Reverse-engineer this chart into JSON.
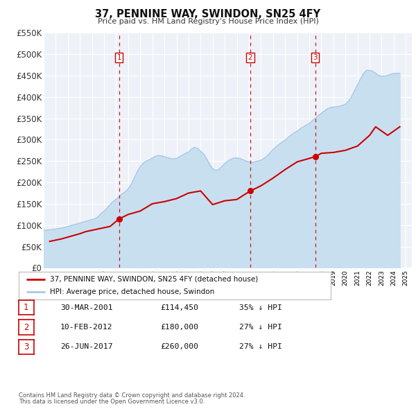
{
  "title": "37, PENNINE WAY, SWINDON, SN25 4FY",
  "subtitle": "Price paid vs. HM Land Registry's House Price Index (HPI)",
  "ylim": [
    0,
    550000
  ],
  "yticks": [
    0,
    50000,
    100000,
    150000,
    200000,
    250000,
    300000,
    350000,
    400000,
    450000,
    500000,
    550000
  ],
  "ytick_labels": [
    "£0",
    "£50K",
    "£100K",
    "£150K",
    "£200K",
    "£250K",
    "£300K",
    "£350K",
    "£400K",
    "£450K",
    "£500K",
    "£550K"
  ],
  "hpi_color": "#a8c8e8",
  "hpi_fill_color": "#c8dff0",
  "price_color": "#cc0000",
  "vline_color": "#cc0000",
  "bg_chart": "#eef2f8",
  "sale_points": [
    {
      "year": 2001.24,
      "price": 114450,
      "label": "1"
    },
    {
      "year": 2012.12,
      "price": 180000,
      "label": "2"
    },
    {
      "year": 2017.49,
      "price": 260000,
      "label": "3"
    }
  ],
  "legend_entries": [
    "37, PENNINE WAY, SWINDON, SN25 4FY (detached house)",
    "HPI: Average price, detached house, Swindon"
  ],
  "table_rows": [
    {
      "num": "1",
      "date": "30-MAR-2001",
      "price": "£114,450",
      "hpi": "35% ↓ HPI"
    },
    {
      "num": "2",
      "date": "10-FEB-2012",
      "price": "£180,000",
      "hpi": "27% ↓ HPI"
    },
    {
      "num": "3",
      "date": "26-JUN-2017",
      "price": "£260,000",
      "hpi": "27% ↓ HPI"
    }
  ],
  "footnote1": "Contains HM Land Registry data © Crown copyright and database right 2024.",
  "footnote2": "This data is licensed under the Open Government Licence v3.0.",
  "hpi_data_x": [
    1995.0,
    1995.25,
    1995.5,
    1995.75,
    1996.0,
    1996.25,
    1996.5,
    1996.75,
    1997.0,
    1997.25,
    1997.5,
    1997.75,
    1998.0,
    1998.25,
    1998.5,
    1998.75,
    1999.0,
    1999.25,
    1999.5,
    1999.75,
    2000.0,
    2000.25,
    2000.5,
    2000.75,
    2001.0,
    2001.25,
    2001.5,
    2001.75,
    2002.0,
    2002.25,
    2002.5,
    2002.75,
    2003.0,
    2003.25,
    2003.5,
    2003.75,
    2004.0,
    2004.25,
    2004.5,
    2004.75,
    2005.0,
    2005.25,
    2005.5,
    2005.75,
    2006.0,
    2006.25,
    2006.5,
    2006.75,
    2007.0,
    2007.25,
    2007.5,
    2007.75,
    2008.0,
    2008.25,
    2008.5,
    2008.75,
    2009.0,
    2009.25,
    2009.5,
    2009.75,
    2010.0,
    2010.25,
    2010.5,
    2010.75,
    2011.0,
    2011.25,
    2011.5,
    2011.75,
    2012.0,
    2012.25,
    2012.5,
    2012.75,
    2013.0,
    2013.25,
    2013.5,
    2013.75,
    2014.0,
    2014.25,
    2014.5,
    2014.75,
    2015.0,
    2015.25,
    2015.5,
    2015.75,
    2016.0,
    2016.25,
    2016.5,
    2016.75,
    2017.0,
    2017.25,
    2017.5,
    2017.75,
    2018.0,
    2018.25,
    2018.5,
    2018.75,
    2019.0,
    2019.25,
    2019.5,
    2019.75,
    2020.0,
    2020.25,
    2020.5,
    2020.75,
    2021.0,
    2021.25,
    2021.5,
    2021.75,
    2022.0,
    2022.25,
    2022.5,
    2022.75,
    2023.0,
    2023.25,
    2023.5,
    2023.75,
    2024.0,
    2024.25,
    2024.5
  ],
  "hpi_data_y": [
    88000,
    88500,
    89000,
    90000,
    91000,
    92000,
    93500,
    95000,
    97000,
    99000,
    101000,
    103000,
    105000,
    107000,
    109000,
    111000,
    113000,
    115000,
    120000,
    127000,
    133000,
    140000,
    148000,
    155000,
    161000,
    167000,
    173000,
    178000,
    185000,
    196000,
    210000,
    225000,
    237000,
    245000,
    250000,
    253000,
    257000,
    261000,
    263000,
    262000,
    260000,
    258000,
    256000,
    255000,
    256000,
    260000,
    264000,
    268000,
    271000,
    278000,
    282000,
    279000,
    273000,
    266000,
    255000,
    242000,
    232000,
    228000,
    230000,
    237000,
    244000,
    250000,
    254000,
    257000,
    257000,
    256000,
    253000,
    250000,
    248000,
    247000,
    248000,
    250000,
    252000,
    256000,
    262000,
    269000,
    277000,
    283000,
    289000,
    294000,
    299000,
    305000,
    311000,
    316000,
    320000,
    325000,
    330000,
    334000,
    338000,
    344000,
    350000,
    356000,
    362000,
    367000,
    372000,
    375000,
    376000,
    377000,
    378000,
    380000,
    383000,
    390000,
    400000,
    415000,
    428000,
    442000,
    455000,
    462000,
    462000,
    460000,
    455000,
    450000,
    448000,
    448000,
    450000,
    453000,
    455000,
    455000,
    455000
  ],
  "price_data_x": [
    1995.5,
    1996.0,
    1996.5,
    1997.0,
    1997.5,
    1998.0,
    1998.5,
    1999.0,
    1999.5,
    2000.0,
    2000.5,
    2001.24,
    2002.0,
    2003.0,
    2004.0,
    2005.0,
    2006.0,
    2007.0,
    2008.0,
    2009.0,
    2010.0,
    2011.0,
    2012.12,
    2013.0,
    2014.0,
    2015.0,
    2016.0,
    2017.49,
    2018.0,
    2019.0,
    2020.0,
    2021.0,
    2022.0,
    2022.5,
    2023.0,
    2023.5,
    2024.0,
    2024.5
  ],
  "price_data_y": [
    62000,
    65000,
    68000,
    72000,
    76000,
    80000,
    85000,
    88000,
    91000,
    94000,
    97000,
    114450,
    125000,
    133000,
    150000,
    155000,
    162000,
    175000,
    180000,
    148000,
    157000,
    160000,
    180000,
    192000,
    210000,
    230000,
    248000,
    260000,
    268000,
    270000,
    275000,
    285000,
    310000,
    330000,
    320000,
    310000,
    320000,
    330000
  ]
}
